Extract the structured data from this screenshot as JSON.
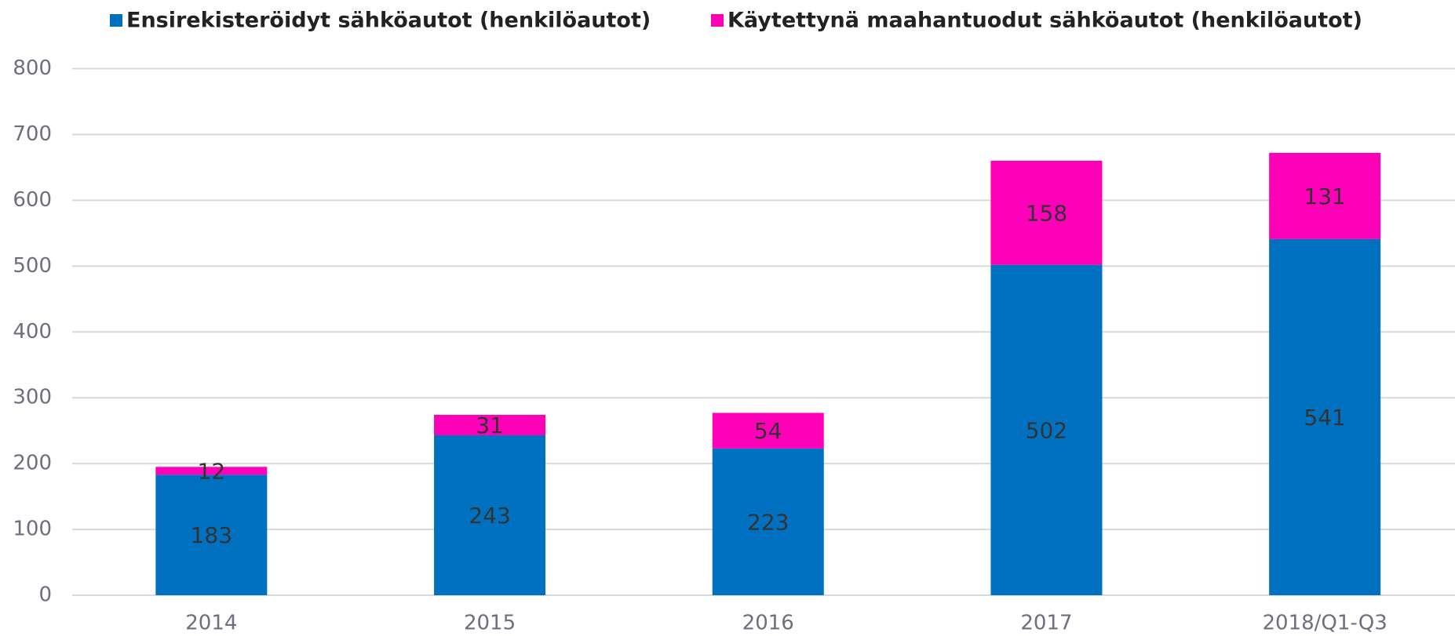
{
  "chart_data": {
    "type": "stacked_bar",
    "categories": [
      "2014",
      "2015",
      "2016",
      "2017",
      "2018/Q1-Q3"
    ],
    "series": [
      {
        "name": "Ensirekisteröidyt sähköautot (henkilöautot)",
        "color": "#0070c0",
        "values": [
          183,
          243,
          223,
          502,
          541
        ]
      },
      {
        "name": "Käytettynä maahantuodut sähköautot (henkilöautot)",
        "color": "#ff00b9",
        "values": [
          12,
          31,
          54,
          158,
          131
        ]
      }
    ],
    "ylim": [
      0,
      800
    ],
    "yticks": [
      0,
      100,
      200,
      300,
      400,
      500,
      600,
      700,
      800
    ],
    "grid": true,
    "legend": "top"
  }
}
